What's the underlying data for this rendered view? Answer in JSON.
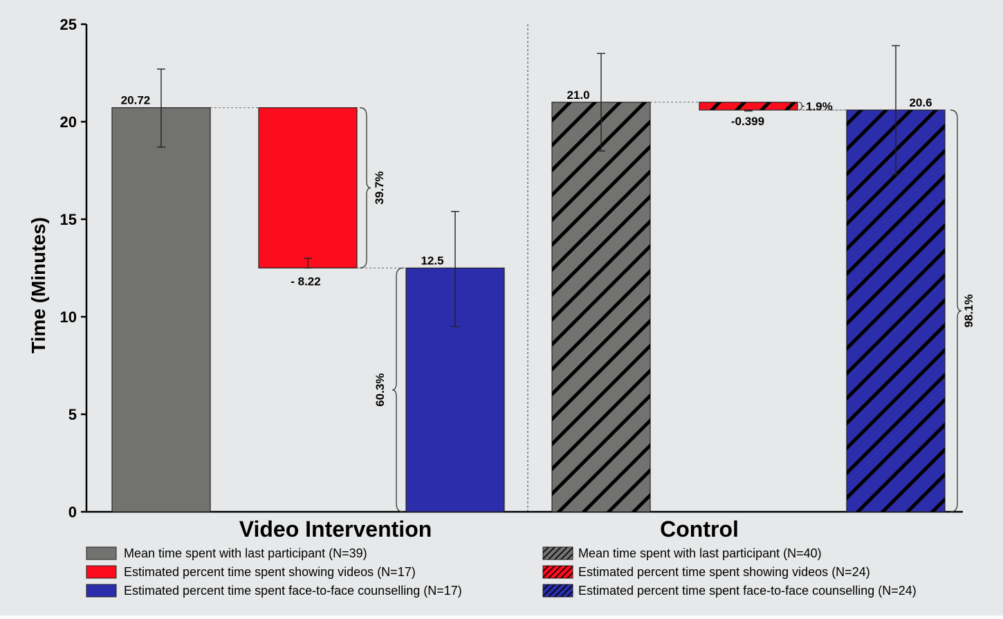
{
  "chart_data": {
    "type": "bar",
    "ylabel": "Time (Minutes)",
    "ylim": [
      0,
      25
    ],
    "yticks": [
      0,
      5,
      10,
      15,
      20,
      25
    ],
    "grid": false,
    "groups": [
      {
        "name": "Video Intervention",
        "hatched": false,
        "bars": [
          {
            "series": "mean",
            "bottom": 0,
            "top": 20.72,
            "label": "20.72",
            "err_low": 18.7,
            "err_high": 22.7,
            "color": "#727271"
          },
          {
            "series": "videos",
            "bottom": 12.5,
            "top": 20.72,
            "label": "- 8.22",
            "err_low": 12.5,
            "err_high": 13.0,
            "color": "#fb0d1e"
          },
          {
            "series": "counselling",
            "bottom": 0,
            "top": 12.5,
            "label": "12.5",
            "err_low": 9.5,
            "err_high": 15.4,
            "color": "#2c2daa"
          }
        ],
        "brackets": [
          {
            "from": 12.5,
            "to": 20.72,
            "label": "39.7%"
          },
          {
            "from": 0,
            "to": 12.5,
            "label": "60.3%"
          }
        ]
      },
      {
        "name": "Control",
        "hatched": true,
        "bars": [
          {
            "series": "mean",
            "bottom": 0,
            "top": 21.0,
            "label": "21.0",
            "err_low": 18.5,
            "err_high": 23.5,
            "color": "#727271"
          },
          {
            "series": "videos",
            "bottom": 20.6,
            "top": 21.0,
            "label": "-0.399",
            "err_low": 20.55,
            "err_high": 20.6,
            "color": "#fb0d1e"
          },
          {
            "series": "counselling",
            "bottom": 0,
            "top": 20.6,
            "label": "20.6",
            "err_low": 17.3,
            "err_high": 23.9,
            "color": "#2c2daa"
          }
        ],
        "brackets": [
          {
            "from": 20.6,
            "to": 21.0,
            "label": "1.9%"
          },
          {
            "from": 0,
            "to": 20.6,
            "label": "98.1%"
          }
        ]
      }
    ],
    "legend": {
      "placement": "bottom",
      "left": [
        {
          "text": "Mean time spent with last participant (N=39)",
          "color": "#727271",
          "hatched": false
        },
        {
          "text": "Estimated percent time spent showing videos (N=17)",
          "color": "#fb0d1e",
          "hatched": false
        },
        {
          "text": "Estimated percent time spent face-to-face counselling (N=17)",
          "color": "#2c2daa",
          "hatched": false
        }
      ],
      "right": [
        {
          "text": "Mean time spent with last participant (N=40)",
          "color": "#727271",
          "hatched": true
        },
        {
          "text": "Estimated percent time spent showing videos (N=24)",
          "color": "#fb0d1e",
          "hatched": true
        },
        {
          "text": "Estimated percent time spent face-to-face counselling (N=24)",
          "color": "#2c2daa",
          "hatched": true
        }
      ]
    }
  }
}
